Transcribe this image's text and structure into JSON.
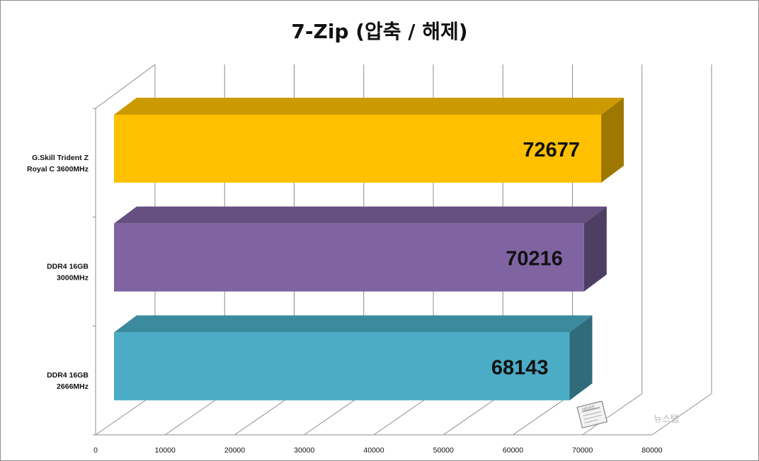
{
  "chart_data": {
    "type": "bar",
    "orientation": "horizontal",
    "style": "3d",
    "title": "7-Zip (압축 / 해제)",
    "xlabel": "",
    "ylabel": "",
    "xlim": [
      0,
      80000
    ],
    "x_ticks": [
      "0",
      "10000",
      "20000",
      "30000",
      "40000",
      "50000",
      "60000",
      "70000",
      "80000"
    ],
    "grid": true,
    "legend": "none",
    "categories": [
      [
        "G.Skill Trident Z",
        "Royal C 3600MHz"
      ],
      [
        "DDR4 16GB",
        "3000MHz"
      ],
      [
        "DDR4 16GB",
        "2666MHz"
      ]
    ],
    "values": [
      72677,
      70216,
      68143
    ],
    "value_labels": [
      "72677",
      "70216",
      "68143"
    ],
    "colors": [
      "#ffc000",
      "#8064a2",
      "#4bacc6"
    ]
  },
  "watermark": {
    "text": "뉴스탭",
    "label": "NEWS"
  }
}
